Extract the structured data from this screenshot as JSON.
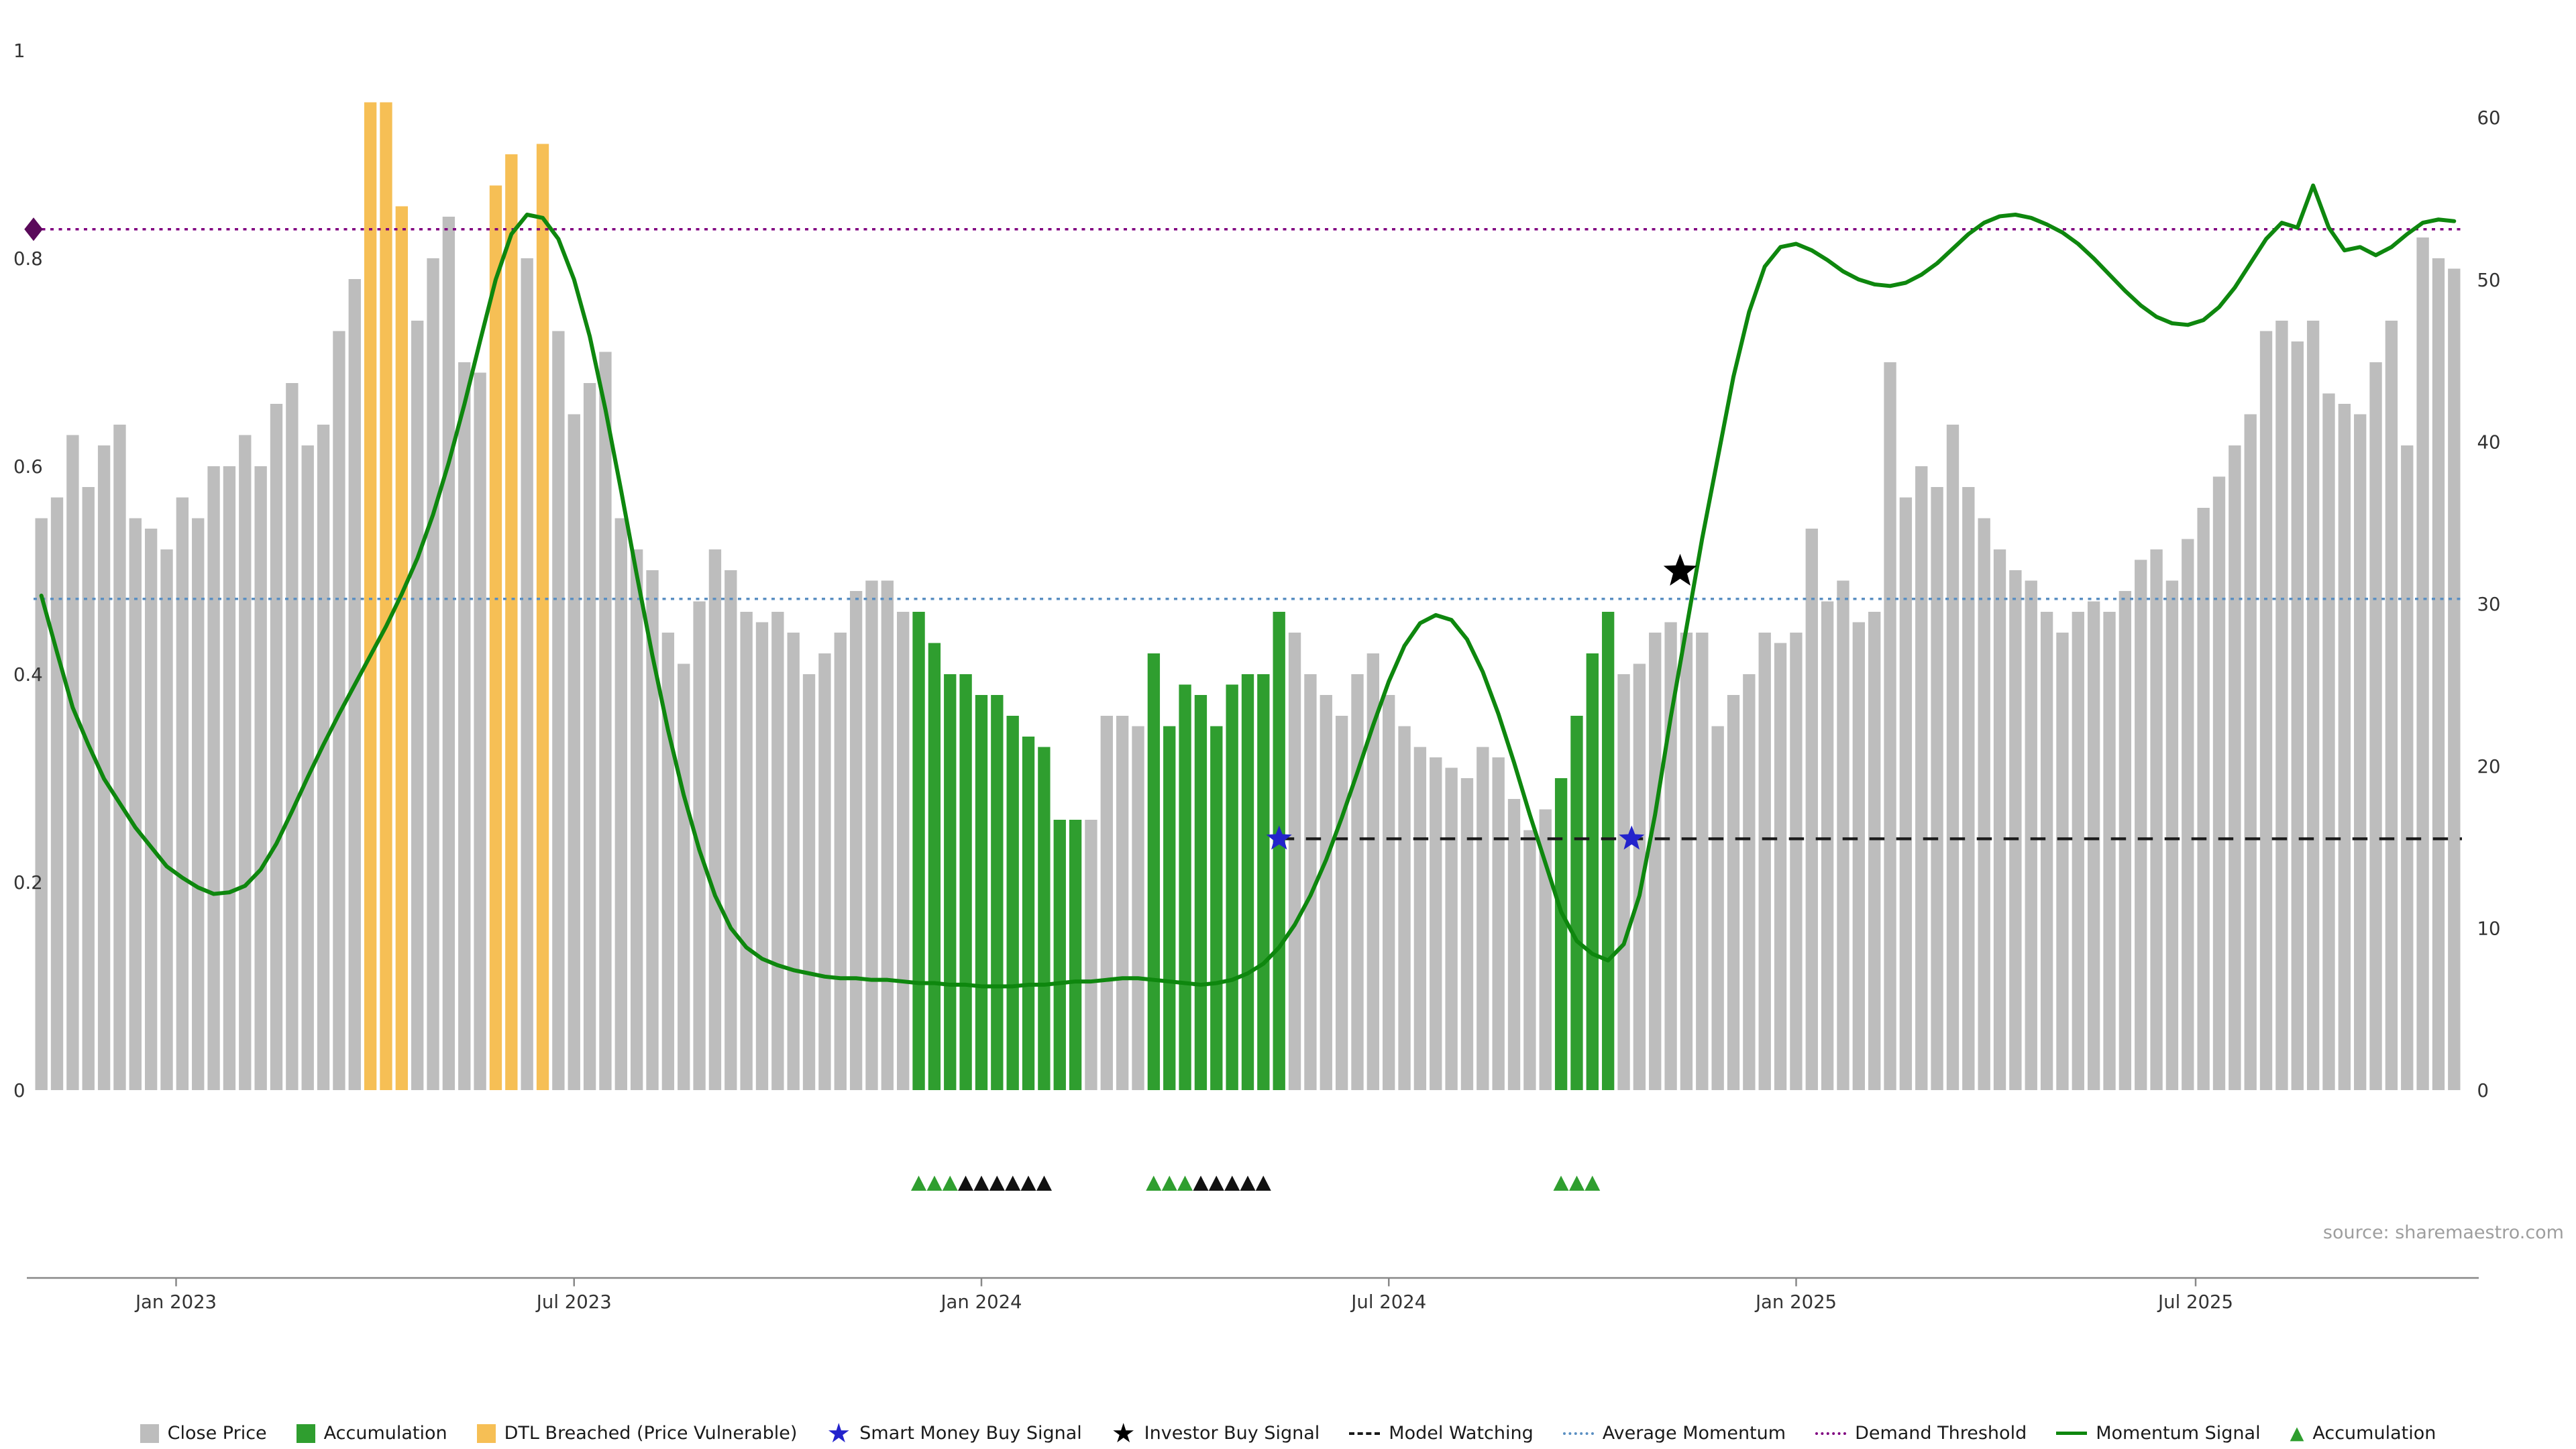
{
  "page": {
    "source_note": "source: sharemaestro.com"
  },
  "colors": {
    "close_price": "#bdbdbd",
    "accumulation": "#2f9e2f",
    "dtl_breached": "#f6bf55",
    "momentum": "#0e870e",
    "demand_threshold": "#800080",
    "average_momentum": "#5a8fc2",
    "model_watching": "#1a1a1a",
    "smart_money_star": "#2323cc",
    "investor_star": "#000000",
    "diamond": "#5a0a5a",
    "axis_text": "#333333",
    "axis_line": "#888888",
    "black_triangle": "#111111"
  },
  "legend": {
    "items": [
      {
        "label": "Close Price",
        "swatch": "square",
        "color_key": "close_price"
      },
      {
        "label": "Accumulation",
        "swatch": "square",
        "color_key": "accumulation"
      },
      {
        "label": "DTL Breached (Price Vulnerable)",
        "swatch": "square",
        "color_key": "dtl_breached"
      },
      {
        "label": "Smart Money Buy Signal",
        "swatch": "star",
        "color_key": "smart_money_star"
      },
      {
        "label": "Investor Buy Signal",
        "swatch": "star",
        "color_key": "investor_star"
      },
      {
        "label": "Model Watching",
        "swatch": "dash",
        "color_key": "model_watching"
      },
      {
        "label": "Average Momentum",
        "swatch": "dot",
        "color_key": "average_momentum"
      },
      {
        "label": "Demand Threshold",
        "swatch": "dot",
        "color_key": "demand_threshold"
      },
      {
        "label": "Momentum Signal",
        "swatch": "line",
        "color_key": "momentum"
      },
      {
        "label": "Accumulation",
        "swatch": "triangle",
        "color_key": "accumulation"
      }
    ]
  },
  "chart_data": {
    "type": "bar+line",
    "x_axis": {
      "unit": "week",
      "start": "Nov 2022",
      "end": "Oct 2025",
      "tick_labels": [
        {
          "label": "Jan 2023",
          "week_index": 8.6
        },
        {
          "label": "Jul 2023",
          "week_index": 34
        },
        {
          "label": "Jan 2024",
          "week_index": 60
        },
        {
          "label": "Jul 2024",
          "week_index": 86
        },
        {
          "label": "Jan 2025",
          "week_index": 112
        },
        {
          "label": "Jul 2025",
          "week_index": 137.5
        }
      ]
    },
    "left_axis": {
      "range": [
        0,
        1
      ],
      "ticks": [
        {
          "label": "0",
          "v": 0
        },
        {
          "label": "0.2",
          "v": 0.2
        },
        {
          "label": "0.4",
          "v": 0.4
        },
        {
          "label": "0.6",
          "v": 0.6
        },
        {
          "label": "0.8",
          "v": 0.8
        },
        {
          "label": "1",
          "v": 1
        }
      ]
    },
    "right_axis": {
      "range": [
        0,
        60
      ],
      "ticks": [
        {
          "label": "0",
          "v": 0
        },
        {
          "label": "10",
          "v": 10
        },
        {
          "label": "20",
          "v": 20
        },
        {
          "label": "30",
          "v": 30
        },
        {
          "label": "40",
          "v": 40
        },
        {
          "label": "50",
          "v": 50
        },
        {
          "label": "60",
          "v": 60
        }
      ]
    },
    "bars": {
      "name": "Close Price",
      "axis": "left",
      "values": [
        0.55,
        0.57,
        0.63,
        0.58,
        0.62,
        0.64,
        0.55,
        0.54,
        0.52,
        0.57,
        0.55,
        0.6,
        0.6,
        0.63,
        0.6,
        0.66,
        0.68,
        0.62,
        0.64,
        0.73,
        0.78,
        0.95,
        0.95,
        0.85,
        0.74,
        0.8,
        0.84,
        0.7,
        0.69,
        0.87,
        0.9,
        0.8,
        0.91,
        0.73,
        0.65,
        0.68,
        0.71,
        0.55,
        0.52,
        0.5,
        0.44,
        0.41,
        0.47,
        0.52,
        0.5,
        0.46,
        0.45,
        0.46,
        0.44,
        0.4,
        0.42,
        0.44,
        0.48,
        0.49,
        0.49,
        0.46,
        0.46,
        0.43,
        0.4,
        0.4,
        0.38,
        0.38,
        0.36,
        0.34,
        0.33,
        0.26,
        0.26,
        0.26,
        0.36,
        0.36,
        0.35,
        0.42,
        0.35,
        0.39,
        0.38,
        0.35,
        0.39,
        0.4,
        0.4,
        0.46,
        0.44,
        0.4,
        0.38,
        0.36,
        0.4,
        0.42,
        0.38,
        0.35,
        0.33,
        0.32,
        0.31,
        0.3,
        0.33,
        0.32,
        0.28,
        0.25,
        0.27,
        0.3,
        0.36,
        0.42,
        0.46,
        0.4,
        0.41,
        0.44,
        0.45,
        0.44,
        0.44,
        0.35,
        0.38,
        0.4,
        0.44,
        0.43,
        0.44,
        0.54,
        0.47,
        0.49,
        0.45,
        0.46,
        0.7,
        0.57,
        0.6,
        0.58,
        0.64,
        0.58,
        0.55,
        0.52,
        0.5,
        0.49,
        0.46,
        0.44,
        0.46,
        0.47,
        0.46,
        0.48,
        0.51,
        0.52,
        0.49,
        0.53,
        0.56,
        0.59,
        0.62,
        0.65,
        0.73,
        0.74,
        0.72,
        0.74,
        0.67,
        0.66,
        0.65,
        0.7,
        0.74,
        0.62,
        0.82,
        0.8,
        0.79
      ],
      "accumulation_indices": [
        56,
        57,
        58,
        59,
        60,
        61,
        62,
        63,
        64,
        65,
        66,
        71,
        72,
        73,
        74,
        75,
        76,
        77,
        78,
        79,
        97,
        98,
        99,
        100
      ],
      "dtl_breached_indices": [
        21,
        22,
        23,
        29,
        30,
        32
      ]
    },
    "momentum": {
      "name": "Momentum Signal",
      "axis": "right",
      "values": [
        30.5,
        27.0,
        23.6,
        21.3,
        19.2,
        17.7,
        16.2,
        15.0,
        13.8,
        13.1,
        12.5,
        12.1,
        12.2,
        12.6,
        13.6,
        15.2,
        17.2,
        19.3,
        21.3,
        23.2,
        25.0,
        26.8,
        28.6,
        30.6,
        32.8,
        35.5,
        38.7,
        42.3,
        46.2,
        50.0,
        52.8,
        54.0,
        53.8,
        52.5,
        50.0,
        46.5,
        42.0,
        37.0,
        31.8,
        26.8,
        22.2,
        18.2,
        14.8,
        12.0,
        10.0,
        8.8,
        8.1,
        7.7,
        7.4,
        7.2,
        7.0,
        6.9,
        6.9,
        6.8,
        6.8,
        6.7,
        6.6,
        6.6,
        6.5,
        6.5,
        6.4,
        6.4,
        6.4,
        6.5,
        6.5,
        6.6,
        6.7,
        6.7,
        6.8,
        6.9,
        6.9,
        6.8,
        6.7,
        6.6,
        6.5,
        6.6,
        6.8,
        7.2,
        7.8,
        8.8,
        10.2,
        12.0,
        14.2,
        16.8,
        19.6,
        22.5,
        25.2,
        27.4,
        28.8,
        29.3,
        29.0,
        27.8,
        25.8,
        23.2,
        20.2,
        17.0,
        14.0,
        11.0,
        9.2,
        8.4,
        8.0,
        9.0,
        12.0,
        17.0,
        23.0,
        28.5,
        34.0,
        39.0,
        44.0,
        48.0,
        50.8,
        52.0,
        52.2,
        51.8,
        51.2,
        50.5,
        50.0,
        49.7,
        49.6,
        49.8,
        50.3,
        51.0,
        51.9,
        52.8,
        53.5,
        53.9,
        54.0,
        53.8,
        53.4,
        52.9,
        52.2,
        51.3,
        50.3,
        49.3,
        48.4,
        47.7,
        47.3,
        47.2,
        47.5,
        48.3,
        49.5,
        51.0,
        52.5,
        53.5,
        53.2,
        55.8,
        53.2,
        51.8,
        52.0,
        51.5,
        52.0,
        52.8,
        53.5,
        53.7,
        53.6
      ]
    },
    "reference_lines": [
      {
        "label": "Demand Threshold",
        "axis": "right",
        "value": 53.1,
        "style": "dotted",
        "color_key": "demand_threshold",
        "name_key": "demand-threshold",
        "marker": "diamond-left"
      },
      {
        "label": "Average Momentum",
        "axis": "right",
        "value": 30.3,
        "style": "dotted",
        "color_key": "average_momentum",
        "name_key": "average-momentum"
      },
      {
        "label": "Model Watching",
        "axis": "right",
        "value": 15.5,
        "style": "dashed",
        "color_key": "model_watching",
        "name_key": "model-watching",
        "from_index": 79
      }
    ],
    "markers": {
      "smart_money_buy_signals": [
        {
          "i": 79,
          "v": 15.5
        },
        {
          "i": 101.5,
          "v": 15.5
        }
      ],
      "investor_buy_signals": [
        {
          "i": 104.6,
          "v": 32
        }
      ],
      "accumulation_triangles": [
        56,
        57,
        58,
        71,
        72,
        73,
        97,
        98,
        99
      ],
      "black_triangles": [
        59,
        60,
        61,
        62,
        63,
        64,
        74,
        75,
        76,
        77,
        78
      ]
    }
  }
}
